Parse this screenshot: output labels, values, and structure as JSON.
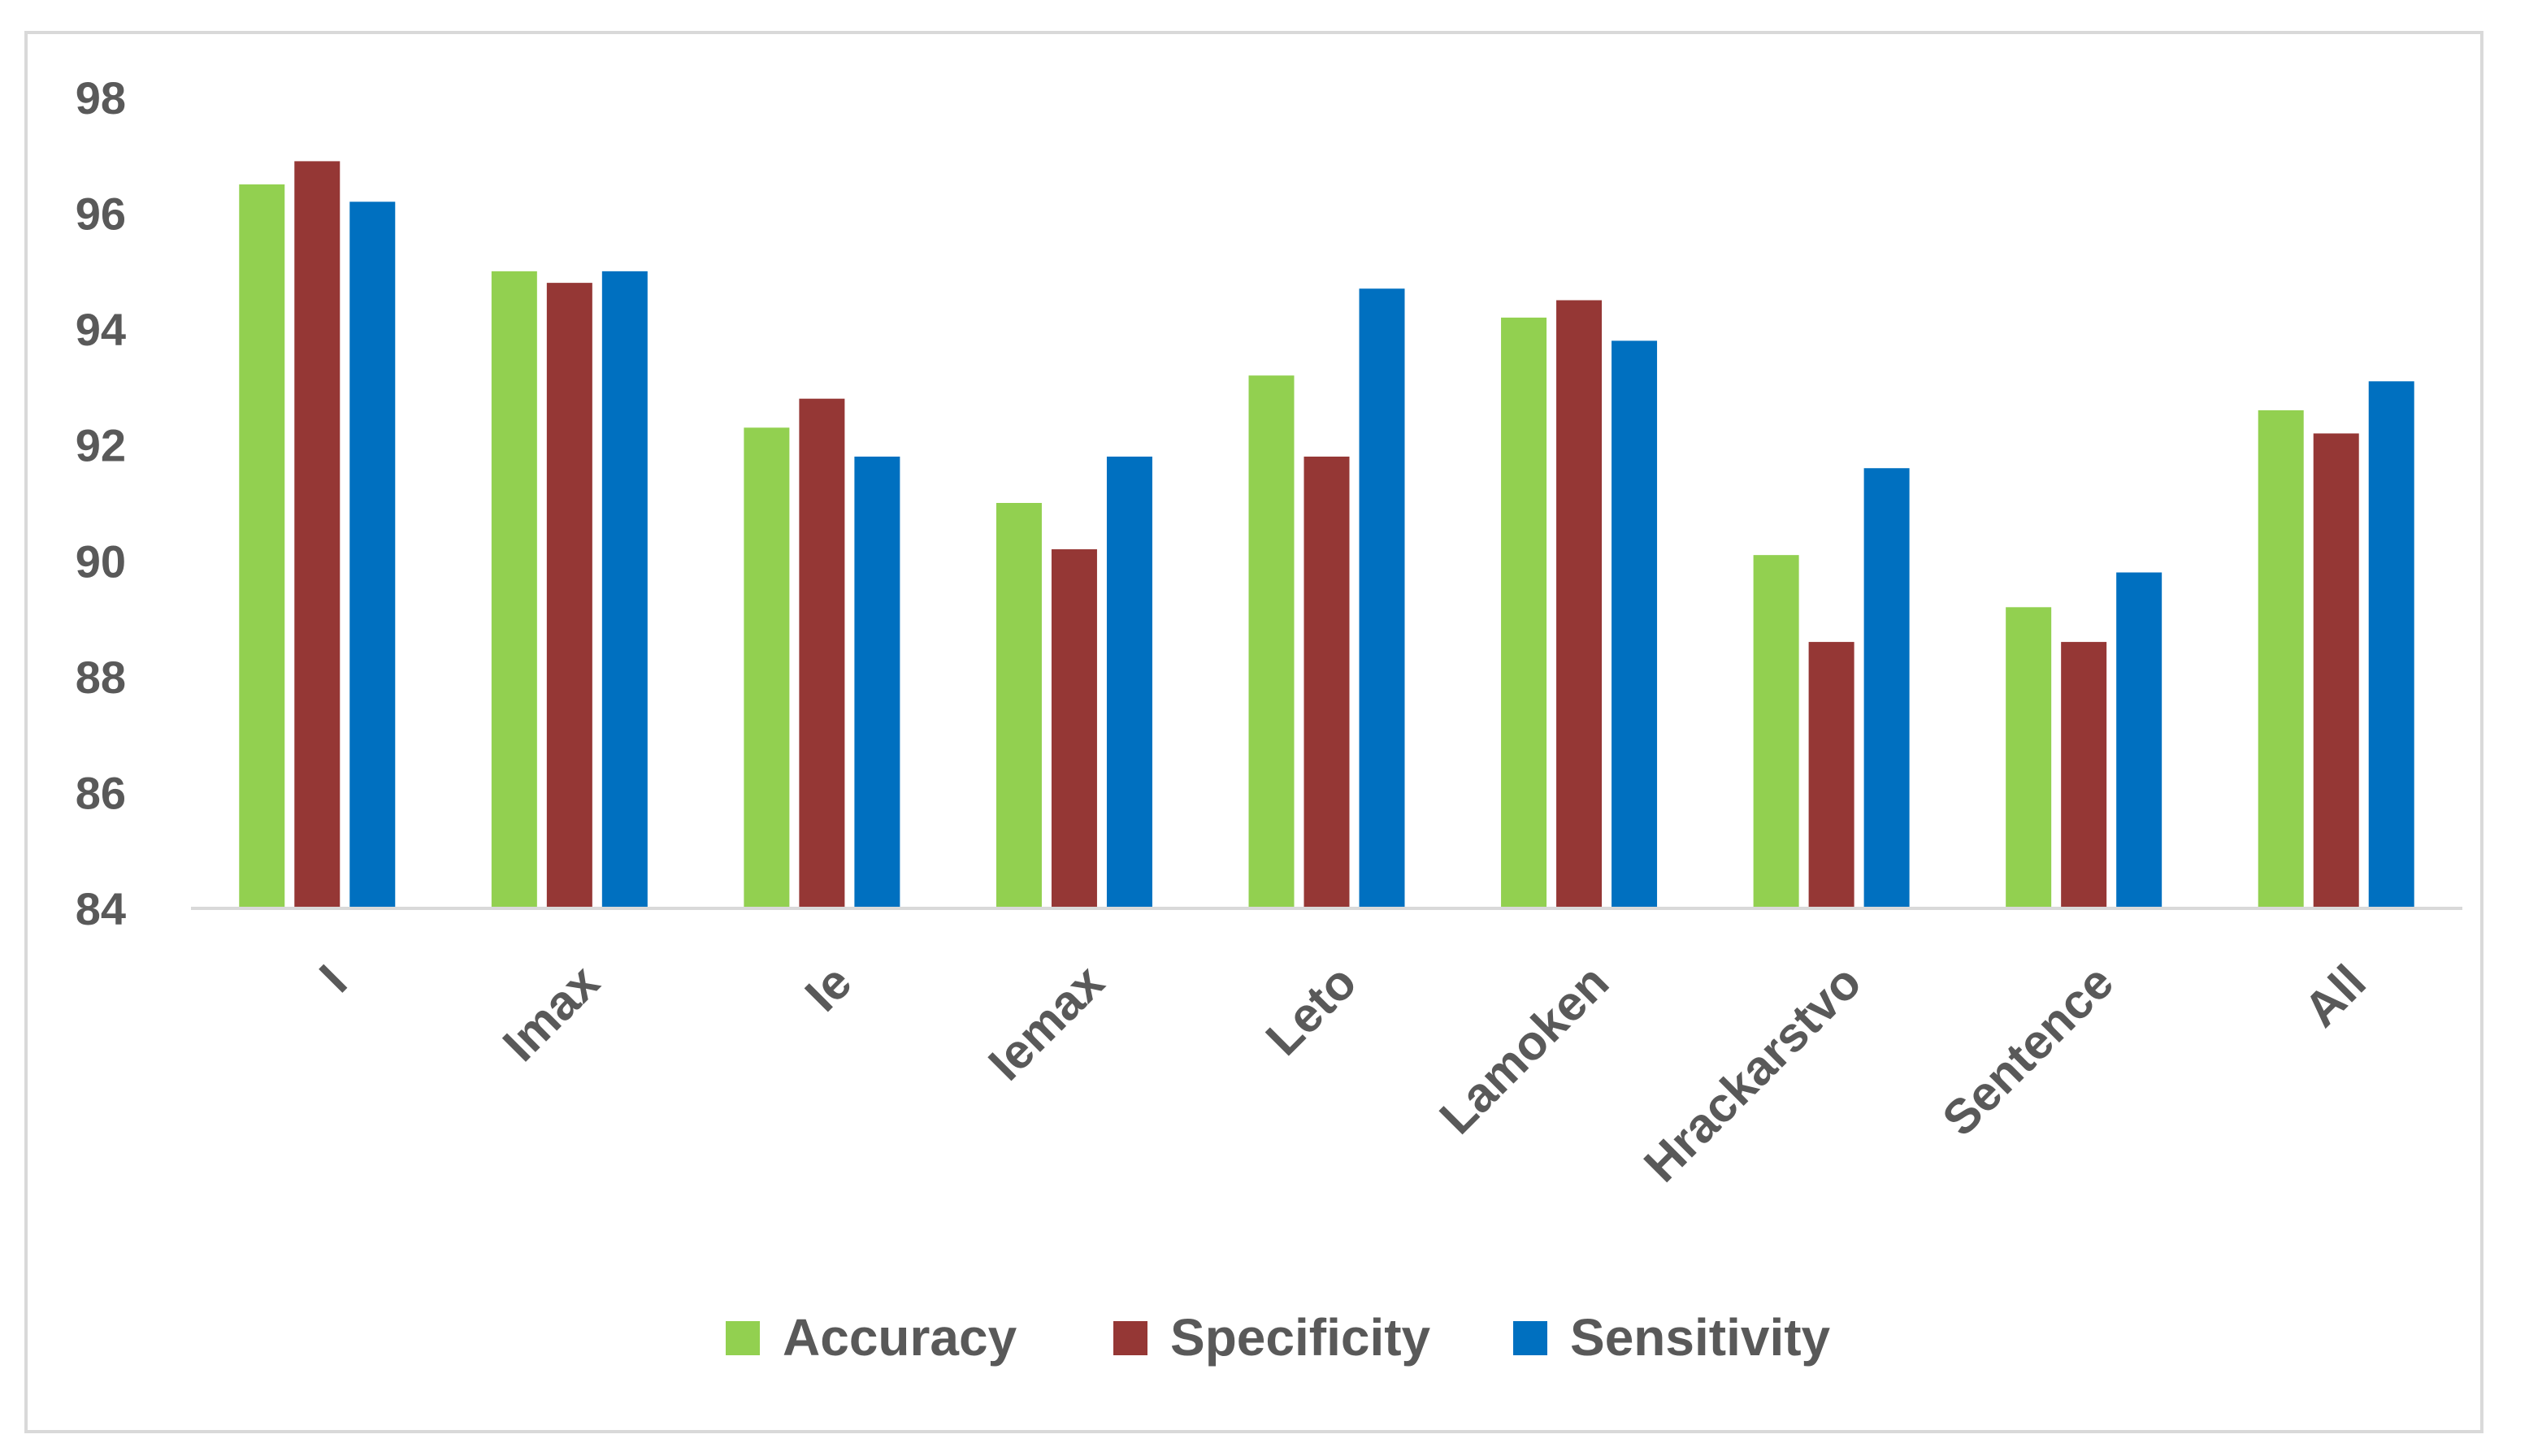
{
  "chart_data": {
    "type": "bar",
    "title": "",
    "xlabel": "",
    "ylabel": "",
    "categories": [
      "I",
      "Imax",
      "Ie",
      "Iemax",
      "Leto",
      "Lamoken",
      "Hrackarstvo",
      "Sentence",
      "All"
    ],
    "series": [
      {
        "name": "Accuracy",
        "color": "#92d050",
        "values": [
          96.5,
          95.0,
          92.3,
          91.0,
          93.2,
          94.2,
          90.1,
          89.2,
          92.6
        ]
      },
      {
        "name": "Specificity",
        "color": "#953735",
        "values": [
          96.9,
          94.8,
          92.8,
          90.2,
          91.8,
          94.5,
          88.6,
          88.6,
          92.2
        ]
      },
      {
        "name": "Sensitivity",
        "color": "#0070c0",
        "values": [
          96.2,
          95.0,
          91.8,
          91.8,
          94.7,
          93.8,
          91.6,
          89.8,
          93.1
        ]
      }
    ],
    "ylim": [
      84,
      98
    ],
    "yticks": [
      84,
      86,
      88,
      90,
      92,
      94,
      96,
      98
    ],
    "grid": false,
    "legend_position": "bottom"
  }
}
